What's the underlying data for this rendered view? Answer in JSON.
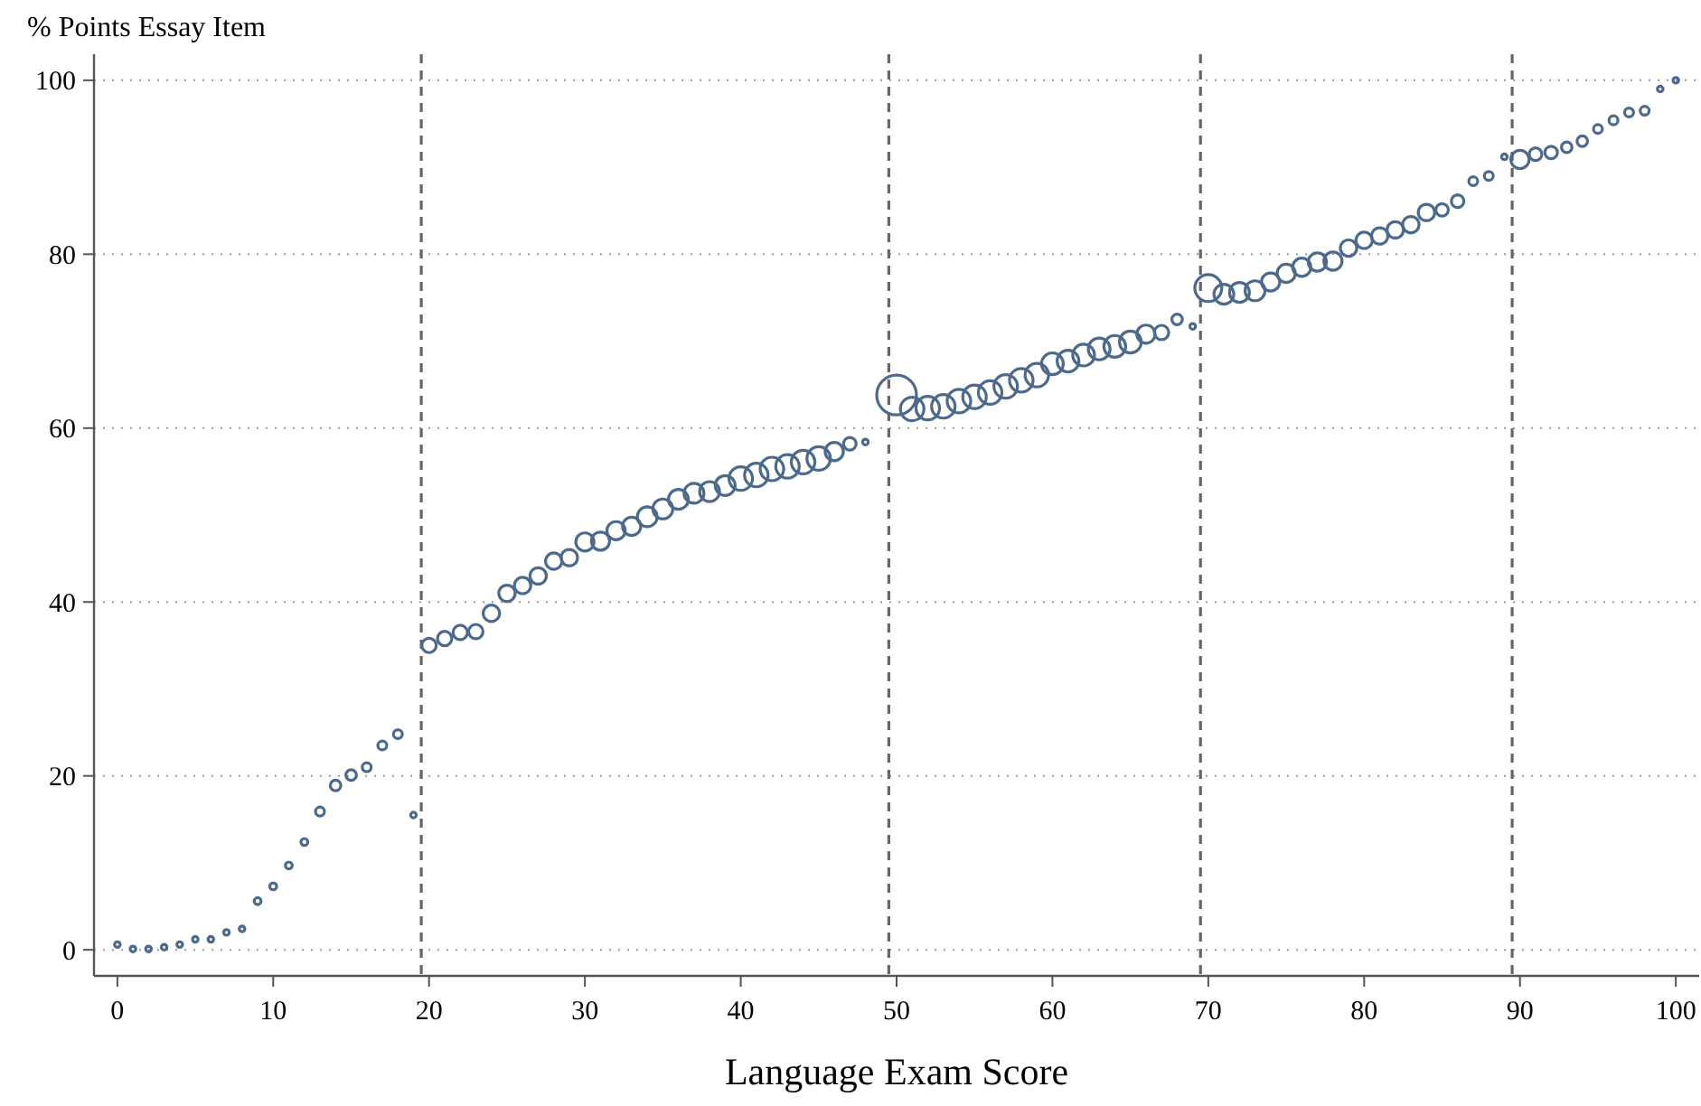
{
  "chart_data": {
    "type": "bubble",
    "xlabel": "Language Exam Score",
    "ylabel": "% Points Essay Item",
    "x": [
      0,
      1,
      2,
      3,
      4,
      5,
      6,
      7,
      8,
      9,
      10,
      11,
      12,
      13,
      14,
      15,
      16,
      17,
      18,
      19,
      20,
      21,
      22,
      23,
      24,
      25,
      26,
      27,
      28,
      29,
      30,
      31,
      32,
      33,
      34,
      35,
      36,
      37,
      38,
      39,
      40,
      41,
      42,
      43,
      44,
      45,
      46,
      47,
      48,
      50,
      51,
      52,
      53,
      54,
      55,
      56,
      57,
      58,
      59,
      60,
      61,
      62,
      63,
      64,
      65,
      66,
      67,
      68,
      69,
      70,
      71,
      72,
      73,
      74,
      75,
      76,
      77,
      78,
      79,
      80,
      81,
      82,
      83,
      84,
      85,
      86,
      87,
      88,
      89,
      90,
      91,
      92,
      93,
      94,
      95,
      96,
      97,
      98,
      99,
      100
    ],
    "values": [
      0.6,
      0.1,
      0.1,
      0.3,
      0.6,
      1.2,
      1.2,
      2.0,
      2.4,
      5.6,
      7.3,
      9.7,
      12.4,
      15.9,
      18.9,
      20.1,
      21.0,
      23.5,
      24.8,
      15.5,
      35.0,
      35.8,
      36.5,
      36.6,
      38.7,
      41.0,
      41.9,
      43.0,
      44.7,
      45.1,
      46.9,
      47.0,
      48.2,
      48.7,
      49.8,
      50.7,
      51.8,
      52.5,
      52.7,
      53.4,
      54.2,
      54.6,
      55.3,
      55.6,
      56.1,
      56.5,
      57.3,
      58.2,
      58.4,
      63.8,
      62.2,
      62.3,
      62.5,
      63.1,
      63.6,
      64.1,
      64.8,
      65.5,
      66.1,
      67.4,
      67.7,
      68.4,
      69.1,
      69.4,
      69.9,
      70.8,
      71.0,
      72.5,
      71.7,
      76.1,
      75.4,
      75.6,
      75.8,
      76.8,
      77.8,
      78.5,
      79.1,
      79.2,
      80.7,
      81.6,
      82.1,
      82.8,
      83.4,
      84.8,
      85.1,
      86.1,
      88.4,
      89.0,
      91.2,
      90.9,
      91.5,
      91.7,
      92.3,
      93.0,
      94.4,
      95.4,
      96.3,
      96.5,
      99.0,
      100
    ],
    "sizes": [
      0.02,
      0.02,
      0.02,
      0.02,
      0.02,
      0.02,
      0.02,
      0.02,
      0.02,
      0.03,
      0.03,
      0.03,
      0.03,
      0.05,
      0.07,
      0.07,
      0.05,
      0.05,
      0.05,
      0.02,
      0.13,
      0.13,
      0.13,
      0.13,
      0.17,
      0.17,
      0.17,
      0.17,
      0.17,
      0.17,
      0.21,
      0.21,
      0.21,
      0.21,
      0.25,
      0.25,
      0.25,
      0.25,
      0.25,
      0.25,
      0.35,
      0.35,
      0.35,
      0.35,
      0.35,
      0.35,
      0.21,
      0.1,
      0.02,
      1,
      0.35,
      0.35,
      0.35,
      0.35,
      0.35,
      0.35,
      0.35,
      0.35,
      0.35,
      0.3,
      0.3,
      0.3,
      0.3,
      0.3,
      0.3,
      0.21,
      0.13,
      0.07,
      0.02,
      0.46,
      0.25,
      0.25,
      0.25,
      0.21,
      0.21,
      0.21,
      0.21,
      0.21,
      0.17,
      0.17,
      0.17,
      0.17,
      0.17,
      0.17,
      0.1,
      0.1,
      0.05,
      0.05,
      0.02,
      0.21,
      0.1,
      0.1,
      0.07,
      0.07,
      0.05,
      0.05,
      0.05,
      0.05,
      0.02,
      0.02
    ],
    "color": "#4b6a8c",
    "marker": "circle",
    "xlim": [
      -1.5,
      101.5
    ],
    "ylim": [
      -3,
      103
    ],
    "xticks": [
      0,
      10,
      20,
      30,
      40,
      50,
      60,
      70,
      80,
      90,
      100
    ],
    "yticks": [
      0,
      20,
      40,
      60,
      80,
      100
    ],
    "grid": "y",
    "ref_lines": [
      {
        "axis": "x",
        "value": 19.5,
        "line_style": "dashed"
      },
      {
        "axis": "x",
        "value": 49.5,
        "line_style": "dashed"
      },
      {
        "axis": "x",
        "value": 69.5,
        "line_style": "dashed"
      },
      {
        "axis": "x",
        "value": 89.5,
        "line_style": "dashed"
      }
    ]
  }
}
